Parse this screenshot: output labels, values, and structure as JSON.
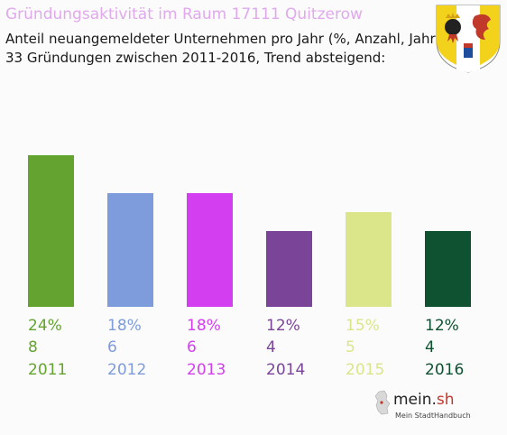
{
  "header": {
    "title": "Gründungsaktivität im Raum 17111 Quitzerow",
    "subtitle_line1": "Anteil neuangemeldeter Unternehmen pro Jahr (%, Anzahl, Jahr)",
    "subtitle_line2": "33 Gründungen zwischen 2011-2016, Trend absteigend:"
  },
  "logo": {
    "name_main": "mein.",
    "name_suffix": "sh",
    "tagline": "Mein StadtHandbuch"
  },
  "chart_data": {
    "type": "bar",
    "categories": [
      "2011",
      "2012",
      "2013",
      "2014",
      "2015",
      "2016"
    ],
    "percent_labels": [
      "24%",
      "18%",
      "18%",
      "12%",
      "15%",
      "12%"
    ],
    "counts": [
      8,
      6,
      6,
      4,
      5,
      4
    ],
    "values": [
      24,
      18,
      18,
      12,
      15,
      12
    ],
    "colors": [
      "#64a32f",
      "#7e9bdc",
      "#d43ef1",
      "#7a4599",
      "#dbe68a",
      "#0f5232"
    ],
    "ylim": [
      0,
      24
    ]
  }
}
